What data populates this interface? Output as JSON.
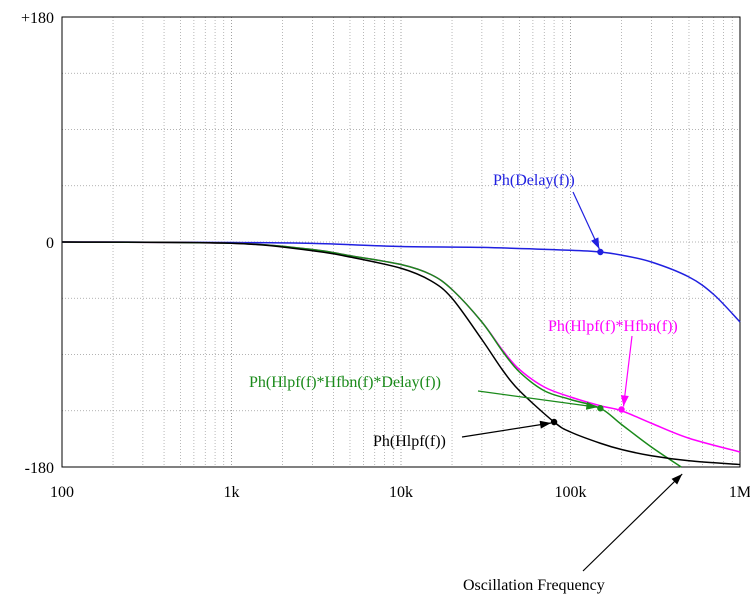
{
  "chart_data": {
    "type": "line",
    "x_scale": "log",
    "xlim": [
      100,
      1000000
    ],
    "ylim": [
      -180,
      180
    ],
    "xticks": [
      {
        "value": 100,
        "label": "100"
      },
      {
        "value": 1000,
        "label": "1k"
      },
      {
        "value": 10000,
        "label": "10k"
      },
      {
        "value": 100000,
        "label": "100k"
      },
      {
        "value": 1000000,
        "label": "1M"
      }
    ],
    "yticks": [
      {
        "value": 180,
        "label": "+180"
      },
      {
        "value": 0,
        "label": "0"
      },
      {
        "value": -180,
        "label": "-180"
      }
    ],
    "grid": true,
    "series": [
      {
        "name": "Ph(Delay(f))",
        "color": "#2020e0",
        "x": [
          100,
          1000,
          3000,
          10000,
          30000,
          100000,
          150000,
          200000,
          300000,
          500000,
          700000,
          1000000
        ],
        "y": [
          0,
          -0.4,
          -1.1,
          -3.6,
          -4.3,
          -6.6,
          -8,
          -10.5,
          -16,
          -28,
          -42,
          -64
        ]
      },
      {
        "name": "Ph(Hlpf(f)*Hfbn(f))",
        "color": "#ff00ff",
        "x": [
          100,
          1000,
          3000,
          5000,
          10000,
          15000,
          20000,
          30000,
          40000,
          50000,
          70000,
          100000,
          150000,
          200000,
          300000,
          500000,
          1000000
        ],
        "y": [
          0,
          -1,
          -6,
          -11,
          -18,
          -26,
          -38,
          -64,
          -87,
          -102,
          -116,
          -124,
          -131,
          -135,
          -145,
          -157,
          -168
        ]
      },
      {
        "name": "Ph(Hlpf(f)*Hfbn(f)*Delay(f))",
        "color": "#1a8a1a",
        "x": [
          100,
          1000,
          3000,
          5000,
          10000,
          15000,
          20000,
          30000,
          40000,
          50000,
          70000,
          100000,
          150000,
          200000,
          300000,
          450000
        ],
        "y": [
          0,
          -1,
          -6,
          -11,
          -18,
          -26,
          -38,
          -64,
          -88,
          -104,
          -119,
          -126,
          -133,
          -146,
          -164,
          -180
        ]
      },
      {
        "name": "Ph(Hlpf(f))",
        "color": "#000000",
        "x": [
          100,
          1000,
          3000,
          5000,
          10000,
          15000,
          20000,
          30000,
          40000,
          50000,
          80000,
          100000,
          150000,
          200000,
          300000,
          500000,
          1000000
        ],
        "y": [
          0,
          -1,
          -7,
          -12,
          -21,
          -31,
          -45,
          -78,
          -103,
          -119,
          -144,
          -152,
          -161,
          -166,
          -171,
          -175,
          -178
        ]
      }
    ],
    "annotations": [
      {
        "text": "Ph(Delay(f))",
        "color": "#2020e0",
        "at": [
          150000,
          -8
        ]
      },
      {
        "text": "Ph(Hlpf(f)*Hfbn(f))",
        "color": "#ff00ff",
        "at": [
          200000,
          -134
        ]
      },
      {
        "text": "Ph(Hlpf(f)*Hfbn(f)*Delay(f))",
        "color": "#1a8a1a",
        "at": [
          150000,
          -133
        ]
      },
      {
        "text": "Ph(Hlpf(f))",
        "color": "#000000",
        "at": [
          80000,
          -144
        ]
      },
      {
        "text": "Oscillation Frequency",
        "color": "#000000",
        "at": [
          450000,
          -180
        ]
      }
    ]
  }
}
